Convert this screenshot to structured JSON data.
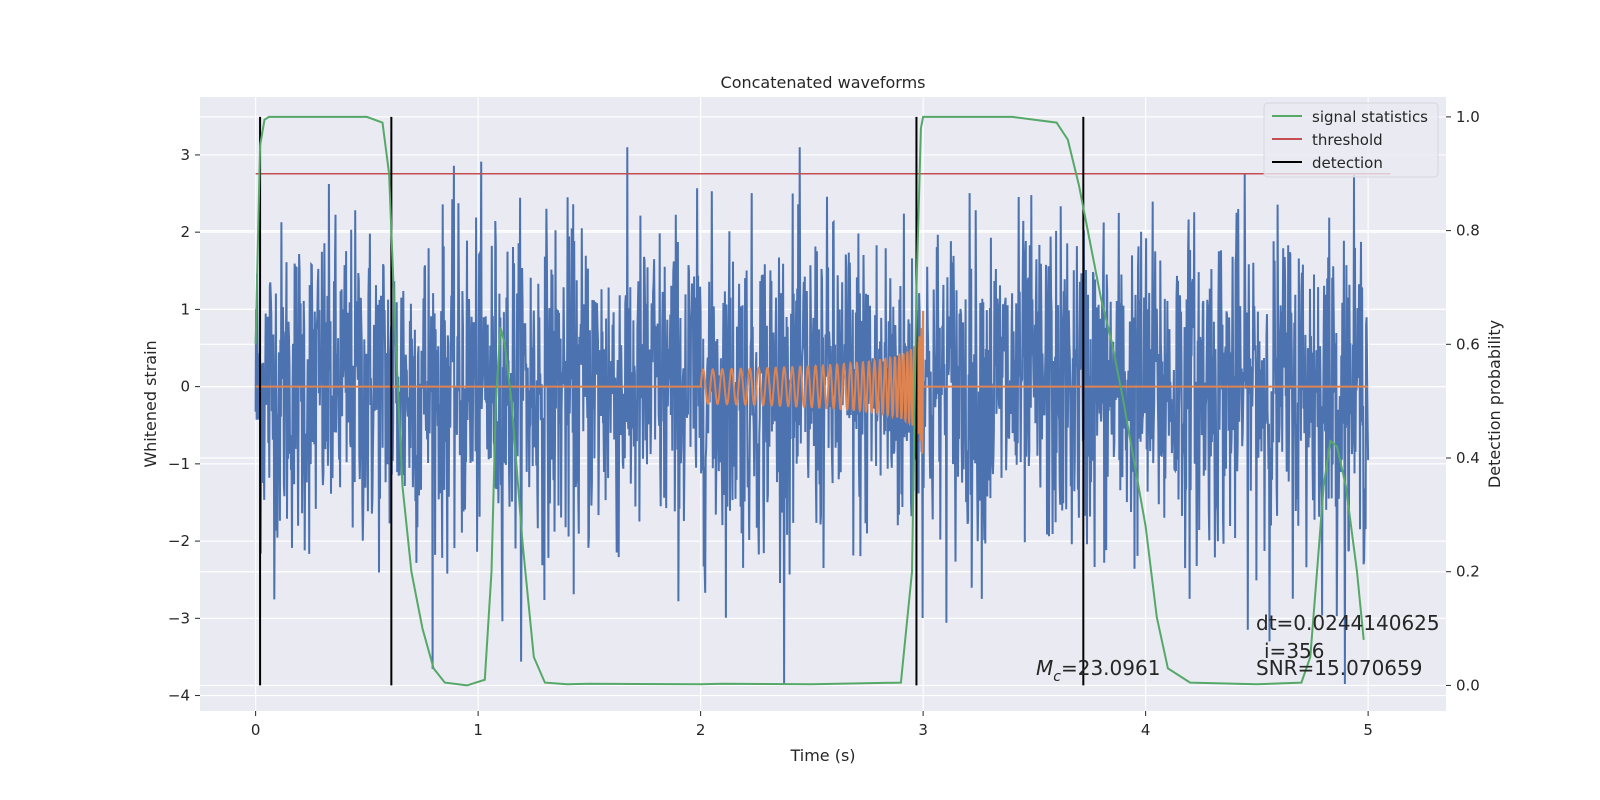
{
  "chart_data": {
    "type": "line",
    "title": "Concatenated waveforms",
    "xlabel": "Time (s)",
    "ylabel": "Whitened strain",
    "y2label": "Detection probability",
    "xlim": [
      -0.25,
      5.35
    ],
    "ylim": [
      -4.2,
      3.75
    ],
    "y2lim": [
      -0.045,
      1.035
    ],
    "xticks": [
      0,
      1,
      2,
      3,
      4,
      5
    ],
    "yticks": [
      -4,
      -3,
      -2,
      -1,
      0,
      1,
      2,
      3
    ],
    "yticklabels": [
      "−4",
      "−3",
      "−2",
      "−1",
      "0",
      "1",
      "2",
      "3"
    ],
    "y2ticks": [
      0.0,
      0.2,
      0.4,
      0.6,
      0.8,
      1.0
    ],
    "y2ticklabels": [
      "0.0",
      "0.2",
      "0.4",
      "0.6",
      "0.8",
      "1.0"
    ],
    "grid": true,
    "legend_position": "top-right",
    "colors": {
      "background": "#eaeaf2",
      "grid": "#ffffff",
      "noise": "#4c72b0",
      "template": "#dd8452",
      "signal_statistics": "#55a868",
      "threshold": "#c44e52",
      "detection": "#000000"
    },
    "legend": [
      {
        "label": "signal statistics",
        "color": "#55a868"
      },
      {
        "label": "threshold",
        "color": "#c44e52"
      },
      {
        "label": "detection",
        "color": "#000000"
      }
    ],
    "noise": {
      "x_range": [
        0,
        5
      ],
      "std": 1.05,
      "max": 3.1,
      "min": -3.85
    },
    "template": {
      "x_start": 2.0,
      "x_end": 3.0,
      "amplitude_start": 0.22,
      "amplitude_peak": 1.5
    },
    "series": [
      {
        "name": "signal statistics",
        "axis": "y2",
        "x": [
          0.0,
          0.02,
          0.04,
          0.06,
          0.1,
          0.5,
          0.57,
          0.6,
          0.63,
          0.66,
          0.7,
          0.75,
          0.8,
          0.85,
          0.95,
          1.03,
          1.06,
          1.08,
          1.1,
          1.12,
          1.15,
          1.2,
          1.25,
          1.3,
          1.4,
          1.5,
          2.0,
          2.1,
          2.5,
          2.9,
          2.95,
          2.97,
          2.99,
          3.0,
          3.05,
          3.4,
          3.6,
          3.65,
          3.7,
          3.75,
          3.8,
          3.85,
          3.9,
          4.0,
          4.05,
          4.1,
          4.2,
          4.5,
          4.7,
          4.74,
          4.77,
          4.8,
          4.83,
          4.86,
          4.9,
          4.95,
          4.98
        ],
        "values": [
          0.6,
          0.95,
          0.995,
          1.0,
          1.0,
          1.0,
          0.99,
          0.9,
          0.6,
          0.35,
          0.2,
          0.1,
          0.03,
          0.005,
          0.0,
          0.01,
          0.2,
          0.5,
          0.63,
          0.6,
          0.5,
          0.25,
          0.05,
          0.005,
          0.002,
          0.003,
          0.002,
          0.003,
          0.002,
          0.005,
          0.2,
          0.7,
          0.98,
          1.0,
          1.0,
          1.0,
          0.99,
          0.96,
          0.88,
          0.78,
          0.68,
          0.6,
          0.5,
          0.28,
          0.12,
          0.03,
          0.005,
          0.002,
          0.005,
          0.05,
          0.2,
          0.35,
          0.43,
          0.42,
          0.35,
          0.2,
          0.08
        ]
      },
      {
        "name": "threshold",
        "axis": "y2",
        "x": [
          0.0,
          5.1
        ],
        "values": [
          0.9,
          0.9
        ]
      }
    ],
    "detections": [
      0.02,
      0.61,
      2.97,
      3.72
    ],
    "annotations": {
      "mc_label": "M",
      "mc_sub": "c",
      "mc_value": "=23.0961",
      "dt": "dt=0.0244140625",
      "i": "i=356",
      "snr": "SNR=15.070659"
    }
  }
}
